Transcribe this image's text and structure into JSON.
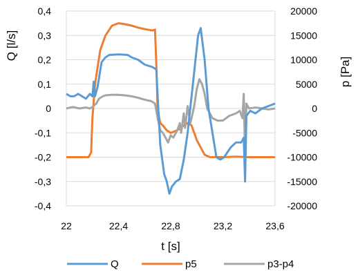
{
  "chart_data": {
    "type": "line",
    "xlabel": "t [s]",
    "ylabel_left": "Q [l/s]",
    "ylabel_right": "p [Pa]",
    "xlim": [
      22,
      23.6
    ],
    "ylim_left": [
      -0.4,
      0.4
    ],
    "ylim_right": [
      -20000,
      20000
    ],
    "x_ticks": [
      22,
      22.4,
      22.8,
      23.2,
      23.6
    ],
    "x_tick_labels": [
      "22",
      "22,4",
      "22,8",
      "23,2",
      "23,6"
    ],
    "y_left_ticks": [
      0.4,
      0.3,
      0.2,
      0.1,
      0,
      -0.1,
      -0.2,
      -0.3,
      -0.4
    ],
    "y_left_tick_labels": [
      "0,4",
      "0,3",
      "0,2",
      "0,1",
      "0",
      "-0,1",
      "-0,2",
      "-0,3",
      "-0,4"
    ],
    "y_right_ticks": [
      20000,
      15000,
      10000,
      5000,
      0,
      -5000,
      -10000,
      -15000,
      -20000
    ],
    "y_right_tick_labels": [
      "20000",
      "15000",
      "10000",
      "5000",
      "0",
      "-5000",
      "-10000",
      "-15000",
      "-20000"
    ],
    "grid": "horizontal",
    "legend_position": "bottom",
    "series": [
      {
        "name": "Q",
        "axis": "left",
        "color": "#5B9BD5",
        "points": [
          [
            22.0,
            0.06
          ],
          [
            22.03,
            0.05
          ],
          [
            22.06,
            0.05
          ],
          [
            22.09,
            0.06
          ],
          [
            22.12,
            0.05
          ],
          [
            22.15,
            0.04
          ],
          [
            22.18,
            0.06
          ],
          [
            22.2,
            0.05
          ],
          [
            22.21,
            0.11
          ],
          [
            22.22,
            0.05
          ],
          [
            22.24,
            0.09
          ],
          [
            22.27,
            0.19
          ],
          [
            22.3,
            0.21
          ],
          [
            22.33,
            0.22
          ],
          [
            22.4,
            0.222
          ],
          [
            22.47,
            0.22
          ],
          [
            22.5,
            0.21
          ],
          [
            22.55,
            0.2
          ],
          [
            22.6,
            0.18
          ],
          [
            22.66,
            0.17
          ],
          [
            22.69,
            0.16
          ],
          [
            22.7,
            0.05
          ],
          [
            22.72,
            -0.15
          ],
          [
            22.75,
            -0.27
          ],
          [
            22.77,
            -0.3
          ],
          [
            22.79,
            -0.35
          ],
          [
            22.81,
            -0.32
          ],
          [
            22.84,
            -0.3
          ],
          [
            22.87,
            -0.29
          ],
          [
            22.9,
            -0.21
          ],
          [
            22.93,
            -0.1
          ],
          [
            22.95,
            0.0
          ],
          [
            22.98,
            0.15
          ],
          [
            23.01,
            0.3
          ],
          [
            23.03,
            0.33
          ],
          [
            23.06,
            0.2
          ],
          [
            23.09,
            0.0
          ],
          [
            23.12,
            -0.1
          ],
          [
            23.15,
            -0.2
          ],
          [
            23.18,
            -0.21
          ],
          [
            23.21,
            -0.2
          ],
          [
            23.26,
            -0.16
          ],
          [
            23.3,
            -0.14
          ],
          [
            23.34,
            -0.14
          ],
          [
            23.36,
            -0.12
          ],
          [
            23.37,
            -0.3
          ],
          [
            23.38,
            -0.03
          ],
          [
            23.41,
            -0.01
          ],
          [
            23.45,
            -0.02
          ],
          [
            23.5,
            0.0
          ],
          [
            23.55,
            0.01
          ],
          [
            23.6,
            0.02
          ]
        ]
      },
      {
        "name": "p5",
        "axis": "right",
        "color": "#ED7D31",
        "points": [
          [
            22.0,
            -10000
          ],
          [
            22.1,
            -10000
          ],
          [
            22.17,
            -10000
          ],
          [
            22.19,
            -9000
          ],
          [
            22.2,
            -2000
          ],
          [
            22.22,
            5000
          ],
          [
            22.26,
            12000
          ],
          [
            22.3,
            15000
          ],
          [
            22.35,
            17000
          ],
          [
            22.4,
            17500
          ],
          [
            22.45,
            17300
          ],
          [
            22.5,
            17000
          ],
          [
            22.55,
            16600
          ],
          [
            22.6,
            16300
          ],
          [
            22.66,
            16000
          ],
          [
            22.68,
            16200
          ],
          [
            22.69,
            9000
          ],
          [
            22.7,
            -200
          ],
          [
            22.72,
            -3000
          ],
          [
            22.74,
            -3500
          ],
          [
            22.77,
            -4500
          ],
          [
            22.8,
            -5000
          ],
          [
            22.85,
            -4500
          ],
          [
            22.9,
            -3500
          ],
          [
            22.93,
            -3000
          ],
          [
            22.96,
            -3500
          ],
          [
            22.98,
            -5000
          ],
          [
            23.0,
            -6500
          ],
          [
            23.03,
            -8000
          ],
          [
            23.06,
            -9500
          ],
          [
            23.1,
            -10000
          ],
          [
            23.2,
            -10000
          ],
          [
            23.3,
            -9900
          ],
          [
            23.4,
            -10000
          ],
          [
            23.5,
            -10000
          ],
          [
            23.6,
            -10000
          ]
        ]
      },
      {
        "name": "p3-p4",
        "axis": "right",
        "color": "#A5A5A5",
        "points": [
          [
            22.0,
            0
          ],
          [
            22.05,
            300
          ],
          [
            22.1,
            0
          ],
          [
            22.15,
            200
          ],
          [
            22.18,
            0
          ],
          [
            22.2,
            300
          ],
          [
            22.23,
            1000
          ],
          [
            22.25,
            2000
          ],
          [
            22.28,
            2500
          ],
          [
            22.3,
            2700
          ],
          [
            22.35,
            2800
          ],
          [
            22.4,
            2800
          ],
          [
            22.45,
            2700
          ],
          [
            22.5,
            2500
          ],
          [
            22.55,
            2200
          ],
          [
            22.6,
            1800
          ],
          [
            22.65,
            1500
          ],
          [
            22.68,
            1000
          ],
          [
            22.7,
            -2000
          ],
          [
            22.72,
            -4500
          ],
          [
            22.74,
            -5000
          ],
          [
            22.76,
            -6000
          ],
          [
            22.78,
            -7000
          ],
          [
            22.8,
            -5500
          ],
          [
            22.82,
            -6000
          ],
          [
            22.85,
            -4500
          ],
          [
            22.87,
            -3000
          ],
          [
            22.88,
            -5000
          ],
          [
            22.9,
            -1000
          ],
          [
            22.91,
            -4000
          ],
          [
            22.93,
            500
          ],
          [
            22.95,
            -3000
          ],
          [
            22.96,
            -2000
          ],
          [
            22.98,
            500
          ],
          [
            23.0,
            4000
          ],
          [
            23.02,
            6000
          ],
          [
            23.04,
            5000
          ],
          [
            23.06,
            3000
          ],
          [
            23.08,
            0
          ],
          [
            23.12,
            -2000
          ],
          [
            23.16,
            -2500
          ],
          [
            23.2,
            -2500
          ],
          [
            23.25,
            -1500
          ],
          [
            23.3,
            -1000
          ],
          [
            23.33,
            -500
          ],
          [
            23.35,
            -2000
          ],
          [
            23.36,
            3000
          ],
          [
            23.37,
            -10000
          ],
          [
            23.38,
            1000
          ],
          [
            23.4,
            0
          ],
          [
            23.45,
            200
          ],
          [
            23.5,
            0
          ],
          [
            23.55,
            -200
          ],
          [
            23.6,
            0
          ]
        ]
      }
    ]
  }
}
